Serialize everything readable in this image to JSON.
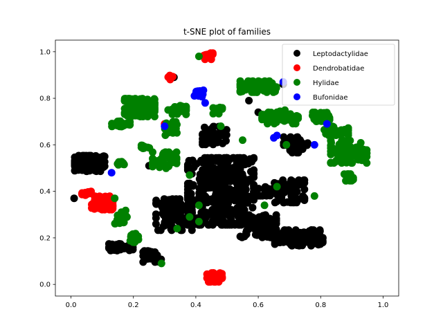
{
  "chart_data": {
    "type": "scatter",
    "title": "t-SNE plot of families",
    "xlabel": "",
    "ylabel": "",
    "xlim": [
      -0.05,
      1.05
    ],
    "ylim": [
      -0.05,
      1.05
    ],
    "xticks": [
      0.0,
      0.2,
      0.4,
      0.6,
      0.8,
      1.0
    ],
    "yticks": [
      0.0,
      0.2,
      0.4,
      0.6,
      0.8,
      1.0
    ],
    "xtick_labels": [
      "0.0",
      "0.2",
      "0.4",
      "0.6",
      "0.8",
      "1.0"
    ],
    "ytick_labels": [
      "0.0",
      "0.2",
      "0.4",
      "0.6",
      "0.8",
      "1.0"
    ],
    "grid": false,
    "legend_position": "upper right",
    "series": [
      {
        "name": "Leptodactylidae",
        "color": "#000000",
        "clusters": [
          {
            "cx": 0.06,
            "cy": 0.52,
            "rx": 0.05,
            "ry": 0.035,
            "n": 110
          },
          {
            "cx": 0.48,
            "cy": 0.4,
            "rx": 0.11,
            "ry": 0.15,
            "n": 420
          },
          {
            "cx": 0.33,
            "cy": 0.3,
            "rx": 0.06,
            "ry": 0.07,
            "n": 120
          },
          {
            "cx": 0.46,
            "cy": 0.64,
            "rx": 0.04,
            "ry": 0.04,
            "n": 60
          },
          {
            "cx": 0.6,
            "cy": 0.25,
            "rx": 0.06,
            "ry": 0.05,
            "n": 90
          },
          {
            "cx": 0.73,
            "cy": 0.2,
            "rx": 0.08,
            "ry": 0.035,
            "n": 120
          },
          {
            "cx": 0.7,
            "cy": 0.4,
            "rx": 0.05,
            "ry": 0.05,
            "n": 60
          },
          {
            "cx": 0.72,
            "cy": 0.6,
            "rx": 0.04,
            "ry": 0.035,
            "n": 40
          },
          {
            "cx": 0.16,
            "cy": 0.16,
            "rx": 0.04,
            "ry": 0.015,
            "n": 35
          },
          {
            "cx": 0.26,
            "cy": 0.12,
            "rx": 0.03,
            "ry": 0.025,
            "n": 30
          },
          {
            "cx": 0.63,
            "cy": 0.4,
            "rx": 0.03,
            "ry": 0.02,
            "n": 25
          }
        ],
        "points": [
          [
            0.01,
            0.37
          ],
          [
            0.33,
            0.89
          ],
          [
            0.25,
            0.51
          ],
          [
            0.57,
            0.79
          ],
          [
            0.6,
            0.74
          ],
          [
            0.68,
            0.86
          ]
        ]
      },
      {
        "name": "Dendrobatidae",
        "color": "#ff0000",
        "clusters": [
          {
            "cx": 0.46,
            "cy": 0.03,
            "rx": 0.025,
            "ry": 0.02,
            "n": 70
          },
          {
            "cx": 0.1,
            "cy": 0.35,
            "rx": 0.035,
            "ry": 0.03,
            "n": 90
          },
          {
            "cx": 0.05,
            "cy": 0.39,
            "rx": 0.015,
            "ry": 0.01,
            "n": 15
          },
          {
            "cx": 0.44,
            "cy": 0.98,
            "rx": 0.015,
            "ry": 0.015,
            "n": 25
          },
          {
            "cx": 0.32,
            "cy": 0.89,
            "rx": 0.01,
            "ry": 0.01,
            "n": 10
          }
        ],
        "points": [
          [
            0.3,
            0.69
          ]
        ]
      },
      {
        "name": "Hylidae",
        "color": "#008000",
        "clusters": [
          {
            "cx": 0.22,
            "cy": 0.76,
            "rx": 0.05,
            "ry": 0.04,
            "n": 120
          },
          {
            "cx": 0.16,
            "cy": 0.69,
            "rx": 0.03,
            "ry": 0.012,
            "n": 40
          },
          {
            "cx": 0.34,
            "cy": 0.75,
            "rx": 0.03,
            "ry": 0.02,
            "n": 30
          },
          {
            "cx": 0.32,
            "cy": 0.67,
            "rx": 0.02,
            "ry": 0.03,
            "n": 25
          },
          {
            "cx": 0.3,
            "cy": 0.53,
            "rx": 0.04,
            "ry": 0.04,
            "n": 40
          },
          {
            "cx": 0.6,
            "cy": 0.85,
            "rx": 0.06,
            "ry": 0.025,
            "n": 90
          },
          {
            "cx": 0.67,
            "cy": 0.72,
            "rx": 0.06,
            "ry": 0.03,
            "n": 70
          },
          {
            "cx": 0.89,
            "cy": 0.57,
            "rx": 0.06,
            "ry": 0.05,
            "n": 110
          },
          {
            "cx": 0.85,
            "cy": 0.66,
            "rx": 0.04,
            "ry": 0.02,
            "n": 40
          },
          {
            "cx": 0.8,
            "cy": 0.72,
            "rx": 0.03,
            "ry": 0.02,
            "n": 30
          },
          {
            "cx": 0.2,
            "cy": 0.2,
            "rx": 0.02,
            "ry": 0.02,
            "n": 25
          },
          {
            "cx": 0.16,
            "cy": 0.29,
            "rx": 0.02,
            "ry": 0.03,
            "n": 20
          },
          {
            "cx": 0.47,
            "cy": 0.75,
            "rx": 0.015,
            "ry": 0.02,
            "n": 15
          },
          {
            "cx": 0.89,
            "cy": 0.46,
            "rx": 0.015,
            "ry": 0.015,
            "n": 15
          },
          {
            "cx": 0.16,
            "cy": 0.52,
            "rx": 0.015,
            "ry": 0.008,
            "n": 10
          },
          {
            "cx": 0.24,
            "cy": 0.59,
            "rx": 0.015,
            "ry": 0.01,
            "n": 10
          }
        ],
        "points": [
          [
            0.41,
            0.98
          ],
          [
            0.14,
            0.37
          ],
          [
            0.38,
            0.47
          ],
          [
            0.41,
            0.34
          ],
          [
            0.41,
            0.27
          ],
          [
            0.38,
            0.29
          ],
          [
            0.34,
            0.24
          ],
          [
            0.29,
            0.09
          ],
          [
            0.62,
            0.34
          ],
          [
            0.66,
            0.42
          ],
          [
            0.69,
            0.6
          ],
          [
            0.78,
            0.38
          ],
          [
            0.55,
            0.62
          ],
          [
            0.48,
            0.68
          ]
        ]
      },
      {
        "name": "Bufonidae",
        "color": "#0000ff",
        "clusters": [
          {
            "cx": 0.41,
            "cy": 0.82,
            "rx": 0.015,
            "ry": 0.015,
            "n": 15
          }
        ],
        "points": [
          [
            0.13,
            0.48
          ],
          [
            0.43,
            0.78
          ],
          [
            0.65,
            0.63
          ],
          [
            0.78,
            0.6
          ],
          [
            0.82,
            0.69
          ],
          [
            0.68,
            0.87
          ],
          [
            0.3,
            0.68
          ],
          [
            0.66,
            0.64
          ]
        ]
      }
    ]
  }
}
